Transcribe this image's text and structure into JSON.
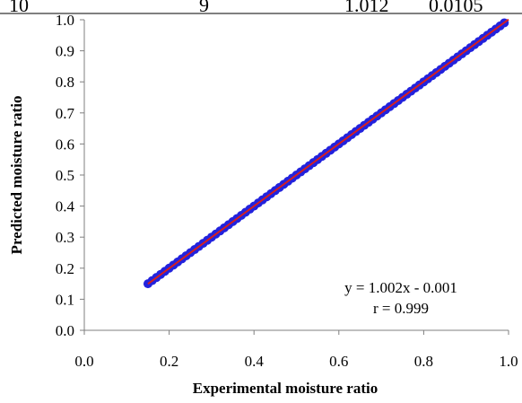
{
  "table_fragment": {
    "cells": [
      "10",
      "9",
      "1.012",
      "0.0105"
    ]
  },
  "chart_data": {
    "type": "scatter",
    "xlabel": "Experimental moisture ratio",
    "ylabel": "Predicted moisture ratio",
    "xlim": [
      0.0,
      1.0
    ],
    "ylim": [
      0.0,
      1.0
    ],
    "x_ticks": [
      "0.0",
      "0.2",
      "0.4",
      "0.6",
      "0.8",
      "1.0"
    ],
    "y_ticks": [
      "0.0",
      "0.1",
      "0.2",
      "0.3",
      "0.4",
      "0.5",
      "0.6",
      "0.7",
      "0.8",
      "0.9",
      "1.0"
    ],
    "grid": false,
    "legend": "none",
    "marker_color": "#2222dd",
    "fit_line_color": "#d42020",
    "series": [
      {
        "x": [
          0.15,
          0.16,
          0.17,
          0.18,
          0.19,
          0.2,
          0.21,
          0.22,
          0.23,
          0.24,
          0.25,
          0.26,
          0.27,
          0.28,
          0.29,
          0.3,
          0.31,
          0.32,
          0.33,
          0.34,
          0.35,
          0.36,
          0.37,
          0.38,
          0.39,
          0.4,
          0.41,
          0.42,
          0.43,
          0.44,
          0.45,
          0.46,
          0.47,
          0.48,
          0.49,
          0.5,
          0.51,
          0.52,
          0.53,
          0.54,
          0.55,
          0.56,
          0.57,
          0.58,
          0.59,
          0.6,
          0.61,
          0.62,
          0.63,
          0.64,
          0.65,
          0.66,
          0.67,
          0.68,
          0.69,
          0.7,
          0.71,
          0.72,
          0.73,
          0.74,
          0.75,
          0.76,
          0.77,
          0.78,
          0.79,
          0.8,
          0.81,
          0.82,
          0.83,
          0.84,
          0.85,
          0.86,
          0.87,
          0.88,
          0.89,
          0.9,
          0.91,
          0.92,
          0.93,
          0.94,
          0.95,
          0.96,
          0.97,
          0.98,
          0.99
        ],
        "y": [
          0.15,
          0.16,
          0.17,
          0.18,
          0.19,
          0.2,
          0.21,
          0.22,
          0.23,
          0.24,
          0.25,
          0.26,
          0.27,
          0.28,
          0.29,
          0.3,
          0.31,
          0.32,
          0.33,
          0.34,
          0.35,
          0.36,
          0.37,
          0.38,
          0.39,
          0.4,
          0.41,
          0.42,
          0.43,
          0.44,
          0.45,
          0.46,
          0.47,
          0.48,
          0.49,
          0.5,
          0.51,
          0.52,
          0.53,
          0.54,
          0.55,
          0.56,
          0.57,
          0.58,
          0.59,
          0.6,
          0.61,
          0.62,
          0.63,
          0.64,
          0.65,
          0.66,
          0.67,
          0.68,
          0.69,
          0.7,
          0.71,
          0.72,
          0.73,
          0.74,
          0.75,
          0.76,
          0.77,
          0.78,
          0.79,
          0.8,
          0.81,
          0.82,
          0.83,
          0.84,
          0.85,
          0.86,
          0.87,
          0.88,
          0.89,
          0.9,
          0.91,
          0.92,
          0.93,
          0.94,
          0.95,
          0.96,
          0.97,
          0.98,
          0.99
        ]
      }
    ],
    "fit_line": {
      "slope": 1.002,
      "intercept": -0.001,
      "x_range": [
        0.15,
        1.0
      ]
    },
    "annotations": [
      "y = 1.002x - 0.001",
      "r = 0.999"
    ]
  }
}
